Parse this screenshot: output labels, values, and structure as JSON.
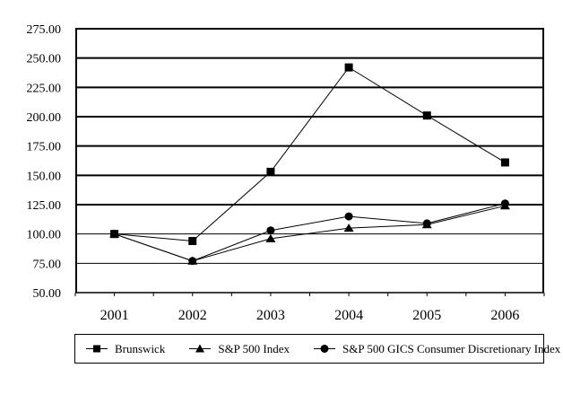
{
  "chart_data": {
    "type": "line",
    "title": "",
    "xlabel": "",
    "ylabel": "",
    "categories": [
      "2001",
      "2002",
      "2003",
      "2004",
      "2005",
      "2006"
    ],
    "series": [
      {
        "name": "Brunswick",
        "marker": "square",
        "values": [
          100.0,
          94.0,
          153.0,
          242.0,
          201.0,
          161.0
        ]
      },
      {
        "name": "S&P 500 Index",
        "marker": "triangle",
        "values": [
          100.0,
          77.0,
          96.0,
          105.0,
          108.0,
          124.0
        ]
      },
      {
        "name": "S&P 500 GICS Consumer Discretionary Index",
        "marker": "circle",
        "values": [
          100.0,
          77.0,
          103.0,
          115.0,
          109.0,
          126.0
        ]
      }
    ],
    "y_tick_labels": [
      "275.00",
      "250.00",
      "225.00",
      "200.00",
      "175.00",
      "150.00",
      "125.00",
      "100.00",
      "75.00",
      "50.00"
    ],
    "y_tick_values": [
      275,
      250,
      225,
      200,
      175,
      150,
      125,
      100,
      75,
      50
    ],
    "ylim": [
      50,
      275
    ],
    "grid": true,
    "legend_position": "bottom",
    "colors": {
      "line": "#000000",
      "marker": "#000000",
      "text": "#000000",
      "background": "#ffffff"
    }
  }
}
